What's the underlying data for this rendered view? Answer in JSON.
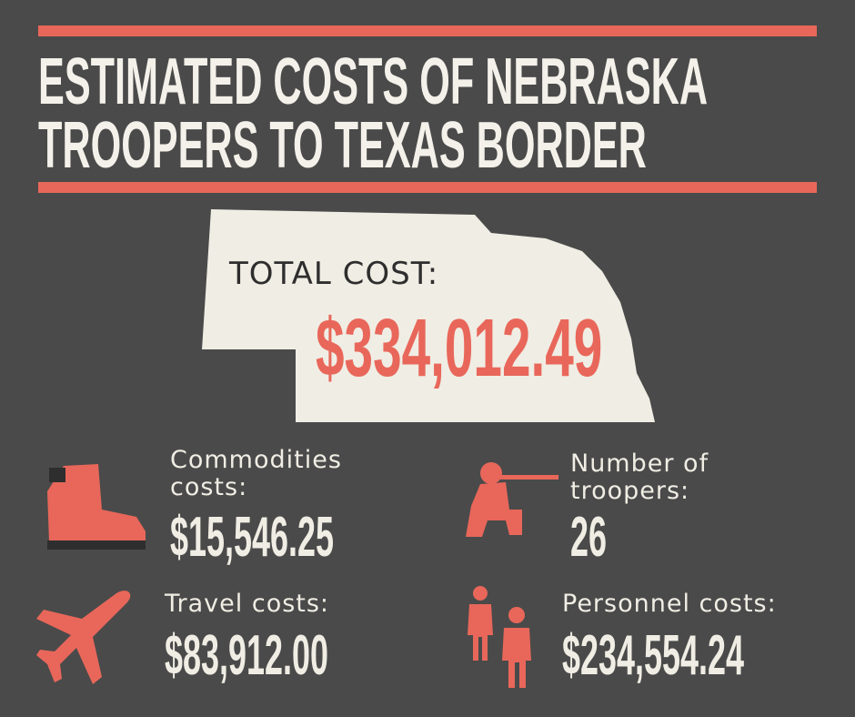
{
  "title_lines": [
    "ESTIMATED COSTS OF NEBRASKA",
    "TROOPERS TO TEXAS BORDER"
  ],
  "total": {
    "label": "TOTAL COST:",
    "value": "$334,012.49"
  },
  "items": [
    {
      "label_lines": [
        "Commodities",
        "costs:"
      ],
      "value": "$15,546.25"
    },
    {
      "label_lines": [
        "Number of",
        "troopers:"
      ],
      "value": "26"
    },
    {
      "label_lines": [
        "Travel costs:"
      ],
      "value": "$83,912.00"
    },
    {
      "label_lines": [
        "Personnel costs:"
      ],
      "value": "$234,554.24"
    }
  ]
}
